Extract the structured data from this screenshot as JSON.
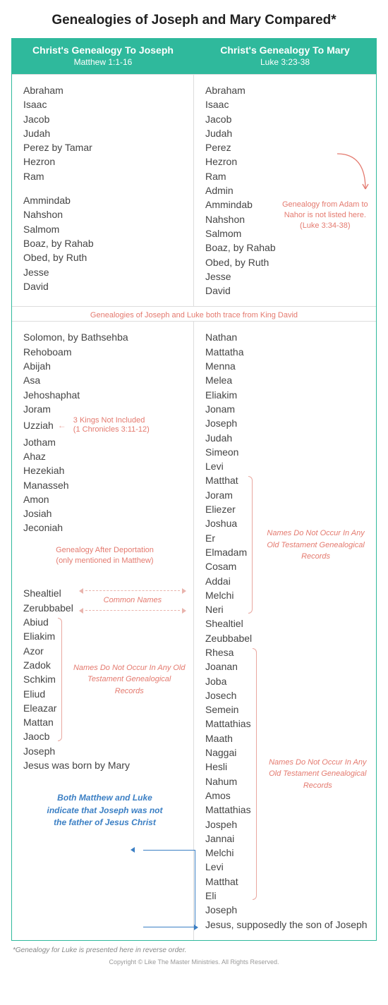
{
  "title": "Genealogies of Joseph and Mary Compared*",
  "header": {
    "left": {
      "h": "Christ's Genealogy To Joseph",
      "sub": "Matthew 1:1-16"
    },
    "right": {
      "h": "Christ's Genealogy To Mary",
      "sub": "Luke 3:23-38"
    }
  },
  "row1": {
    "left": {
      "g1": [
        "Abraham",
        "Isaac",
        "Jacob",
        "Judah",
        "Perez by Tamar",
        "Hezron",
        "Ram"
      ],
      "g2": [
        "Ammindab",
        "Nahshon",
        "Salmom",
        "Boaz, by Rahab",
        "Obed, by Ruth",
        "Jesse",
        "David"
      ]
    },
    "right": {
      "g1": [
        "Abraham",
        "Isaac",
        "Jacob",
        "Judah",
        "Perez",
        "Hezron",
        "Ram",
        "Admin",
        "Ammindab",
        "Nahshon",
        "Salmom",
        "Boaz, by Rahab",
        "Obed, by Ruth",
        "Jesse",
        "David"
      ],
      "note": "Genealogy from Adam to Nahor is not listed here.",
      "noteRef": "(Luke 3:34-38)"
    }
  },
  "midNote": "Genealogies of Joseph and Luke both trace from King David",
  "row2": {
    "left": {
      "g1": [
        "Solomon, by Bathsehba",
        "Rehoboam",
        "Abijah",
        "Asa",
        "Jehoshaphat",
        "Joram"
      ],
      "kingsNote": "3 Kings Not Included",
      "kingsRef": "(1 Chronicles 3:11-12)",
      "g2": [
        "Uzziah",
        "Jotham",
        "Ahaz",
        "Hezekiah",
        "Manasseh",
        "Amon",
        "Josiah",
        "Jeconiah"
      ],
      "deportNote1": "Genealogy After Deportation",
      "deportNote2": "(only mentioned in Matthew)",
      "commonLabel": "Common Names",
      "g3": [
        "Shealtiel",
        "Zerubbabel"
      ],
      "g4": [
        "Abiud",
        "Eliakim",
        "Azor",
        "Zadok",
        "Schkim",
        "Eliud",
        "Eleazar",
        "Mattan",
        "Jaocb"
      ],
      "noOTnote": "Names Do Not Occur In Any Old Testament Genealogical Records",
      "g5": [
        "Joseph",
        "Jesus was born by Mary"
      ],
      "blueNote": "Both Matthew and Luke indicate that Joseph was not the father of Jesus Christ"
    },
    "right": {
      "g1": [
        "Nathan",
        "Mattatha",
        "Menna",
        "Melea",
        "Eliakim",
        "Jonam",
        "Joseph",
        "Judah",
        "Simeon",
        "Levi"
      ],
      "g2": [
        "Matthat",
        "Joram",
        "Eliezer",
        "Joshua",
        "Er",
        "Elmadam",
        "Cosam",
        "Addai",
        "Melchi",
        "Neri"
      ],
      "noOTnote1": "Names Do Not Occur In Any Old Testament Genealogical Records",
      "g3": [
        "Shealtiel",
        "Zeubbabel"
      ],
      "g4": [
        "Rhesa",
        "Joanan",
        "Joba",
        "Josech",
        "Semein",
        "Mattathias",
        "Maath",
        "Naggai",
        "Hesli",
        "Nahum",
        "Amos",
        "Mattathias",
        "Jospeh",
        "Jannai",
        "Melchi",
        "Levi",
        "Matthat",
        "Eli"
      ],
      "noOTnote2": "Names Do Not Occur In Any Old Testament Genealogical Records",
      "g5": [
        "Joseph",
        "Jesus, supposedly the son of Joseph"
      ]
    }
  },
  "footerNote": "*Genealogy for Luke is presented here in reverse order.",
  "copyright": "Copyright © Like The Master Ministries. All Rights Reserved."
}
